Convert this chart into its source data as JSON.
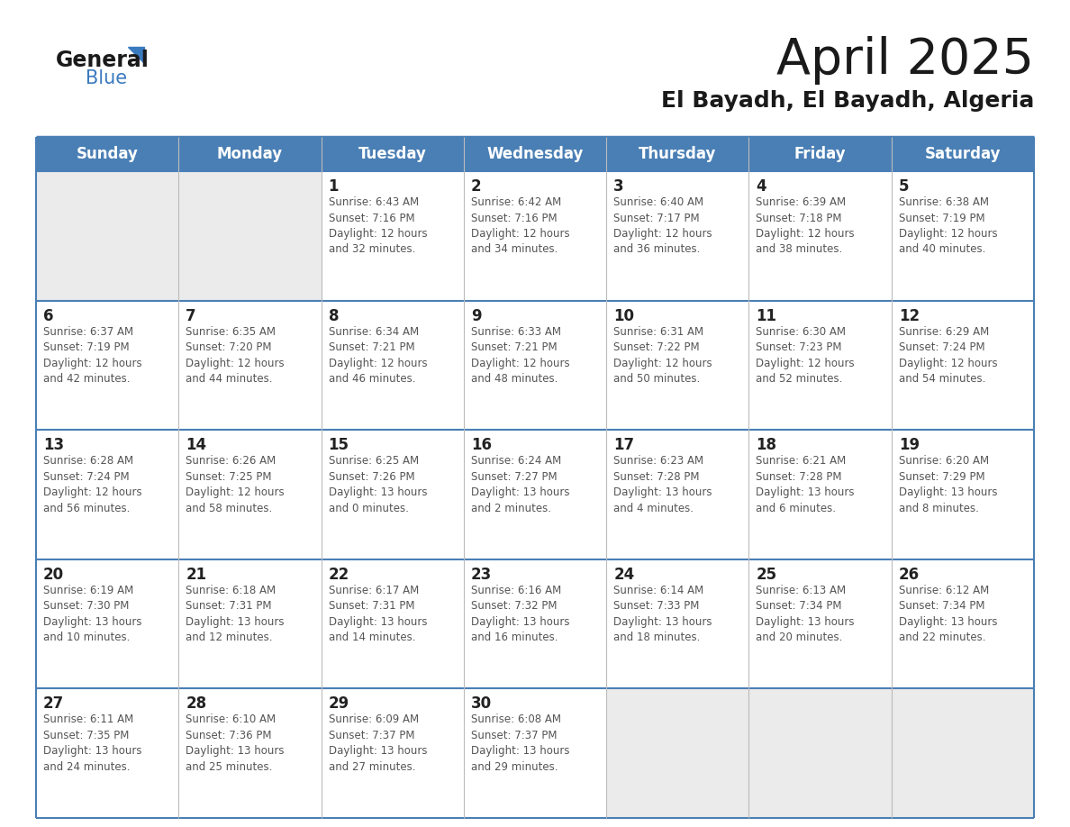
{
  "title": "April 2025",
  "subtitle": "El Bayadh, El Bayadh, Algeria",
  "header_bg": "#4a7fb5",
  "header_text_color": "#ffffff",
  "empty_cell_bg": "#ebebeb",
  "filled_cell_bg": "#ffffff",
  "text_color": "#333333",
  "day_number_color": "#222222",
  "row_border_color": "#4a7fb5",
  "col_border_color": "#cccccc",
  "days_of_week": [
    "Sunday",
    "Monday",
    "Tuesday",
    "Wednesday",
    "Thursday",
    "Friday",
    "Saturday"
  ],
  "weeks": [
    [
      {
        "day": null,
        "info": null
      },
      {
        "day": null,
        "info": null
      },
      {
        "day": 1,
        "info": "Sunrise: 6:43 AM\nSunset: 7:16 PM\nDaylight: 12 hours\nand 32 minutes."
      },
      {
        "day": 2,
        "info": "Sunrise: 6:42 AM\nSunset: 7:16 PM\nDaylight: 12 hours\nand 34 minutes."
      },
      {
        "day": 3,
        "info": "Sunrise: 6:40 AM\nSunset: 7:17 PM\nDaylight: 12 hours\nand 36 minutes."
      },
      {
        "day": 4,
        "info": "Sunrise: 6:39 AM\nSunset: 7:18 PM\nDaylight: 12 hours\nand 38 minutes."
      },
      {
        "day": 5,
        "info": "Sunrise: 6:38 AM\nSunset: 7:19 PM\nDaylight: 12 hours\nand 40 minutes."
      }
    ],
    [
      {
        "day": 6,
        "info": "Sunrise: 6:37 AM\nSunset: 7:19 PM\nDaylight: 12 hours\nand 42 minutes."
      },
      {
        "day": 7,
        "info": "Sunrise: 6:35 AM\nSunset: 7:20 PM\nDaylight: 12 hours\nand 44 minutes."
      },
      {
        "day": 8,
        "info": "Sunrise: 6:34 AM\nSunset: 7:21 PM\nDaylight: 12 hours\nand 46 minutes."
      },
      {
        "day": 9,
        "info": "Sunrise: 6:33 AM\nSunset: 7:21 PM\nDaylight: 12 hours\nand 48 minutes."
      },
      {
        "day": 10,
        "info": "Sunrise: 6:31 AM\nSunset: 7:22 PM\nDaylight: 12 hours\nand 50 minutes."
      },
      {
        "day": 11,
        "info": "Sunrise: 6:30 AM\nSunset: 7:23 PM\nDaylight: 12 hours\nand 52 minutes."
      },
      {
        "day": 12,
        "info": "Sunrise: 6:29 AM\nSunset: 7:24 PM\nDaylight: 12 hours\nand 54 minutes."
      }
    ],
    [
      {
        "day": 13,
        "info": "Sunrise: 6:28 AM\nSunset: 7:24 PM\nDaylight: 12 hours\nand 56 minutes."
      },
      {
        "day": 14,
        "info": "Sunrise: 6:26 AM\nSunset: 7:25 PM\nDaylight: 12 hours\nand 58 minutes."
      },
      {
        "day": 15,
        "info": "Sunrise: 6:25 AM\nSunset: 7:26 PM\nDaylight: 13 hours\nand 0 minutes."
      },
      {
        "day": 16,
        "info": "Sunrise: 6:24 AM\nSunset: 7:27 PM\nDaylight: 13 hours\nand 2 minutes."
      },
      {
        "day": 17,
        "info": "Sunrise: 6:23 AM\nSunset: 7:28 PM\nDaylight: 13 hours\nand 4 minutes."
      },
      {
        "day": 18,
        "info": "Sunrise: 6:21 AM\nSunset: 7:28 PM\nDaylight: 13 hours\nand 6 minutes."
      },
      {
        "day": 19,
        "info": "Sunrise: 6:20 AM\nSunset: 7:29 PM\nDaylight: 13 hours\nand 8 minutes."
      }
    ],
    [
      {
        "day": 20,
        "info": "Sunrise: 6:19 AM\nSunset: 7:30 PM\nDaylight: 13 hours\nand 10 minutes."
      },
      {
        "day": 21,
        "info": "Sunrise: 6:18 AM\nSunset: 7:31 PM\nDaylight: 13 hours\nand 12 minutes."
      },
      {
        "day": 22,
        "info": "Sunrise: 6:17 AM\nSunset: 7:31 PM\nDaylight: 13 hours\nand 14 minutes."
      },
      {
        "day": 23,
        "info": "Sunrise: 6:16 AM\nSunset: 7:32 PM\nDaylight: 13 hours\nand 16 minutes."
      },
      {
        "day": 24,
        "info": "Sunrise: 6:14 AM\nSunset: 7:33 PM\nDaylight: 13 hours\nand 18 minutes."
      },
      {
        "day": 25,
        "info": "Sunrise: 6:13 AM\nSunset: 7:34 PM\nDaylight: 13 hours\nand 20 minutes."
      },
      {
        "day": 26,
        "info": "Sunrise: 6:12 AM\nSunset: 7:34 PM\nDaylight: 13 hours\nand 22 minutes."
      }
    ],
    [
      {
        "day": 27,
        "info": "Sunrise: 6:11 AM\nSunset: 7:35 PM\nDaylight: 13 hours\nand 24 minutes."
      },
      {
        "day": 28,
        "info": "Sunrise: 6:10 AM\nSunset: 7:36 PM\nDaylight: 13 hours\nand 25 minutes."
      },
      {
        "day": 29,
        "info": "Sunrise: 6:09 AM\nSunset: 7:37 PM\nDaylight: 13 hours\nand 27 minutes."
      },
      {
        "day": 30,
        "info": "Sunrise: 6:08 AM\nSunset: 7:37 PM\nDaylight: 13 hours\nand 29 minutes."
      },
      {
        "day": null,
        "info": null
      },
      {
        "day": null,
        "info": null
      },
      {
        "day": null,
        "info": null
      }
    ]
  ],
  "logo_general_color": "#1a1a1a",
  "logo_blue_color": "#3a7abf",
  "logo_triangle_color": "#3a7abf",
  "figsize": [
    11.88,
    9.18
  ],
  "dpi": 100
}
